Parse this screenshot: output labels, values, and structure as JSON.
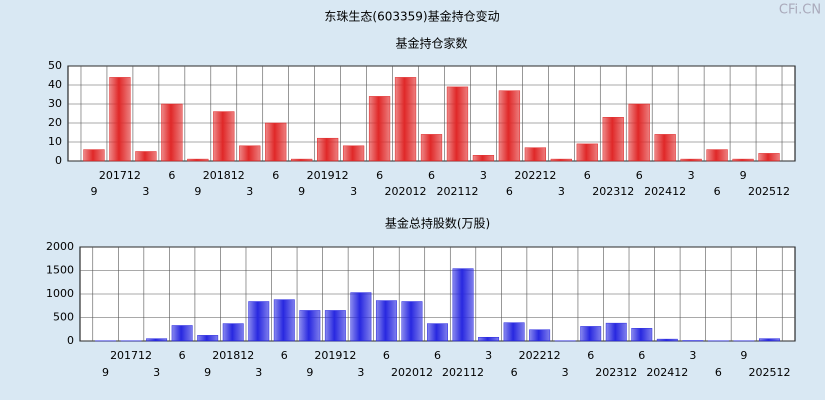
{
  "title": "东珠生态(603359)基金持仓变动",
  "watermark": "CFi.CN",
  "chart_data": [
    {
      "type": "bar",
      "title": "基金持仓家数",
      "categories": [
        "9",
        "201712",
        "3",
        "6",
        "9",
        "201812",
        "3",
        "6",
        "9",
        "201912",
        "3",
        "6",
        "202012",
        "6",
        "202112",
        "3",
        "6",
        "202212",
        "3",
        "6",
        "202312",
        "6",
        "202412",
        "3",
        "6",
        "9",
        "202512"
      ],
      "values": [
        6,
        44,
        5,
        30,
        1,
        26,
        8,
        20,
        1,
        12,
        8,
        34,
        44,
        14,
        39,
        3,
        37,
        7,
        1,
        9,
        23,
        30,
        14,
        1,
        6,
        1,
        4
      ],
      "color": "#e02828",
      "ylim": [
        0,
        50
      ],
      "yticks": [
        0,
        10,
        20,
        30,
        40,
        50
      ],
      "grid": true
    },
    {
      "type": "bar",
      "title": "基金总持股数(万股)",
      "categories": [
        "9",
        "201712",
        "3",
        "6",
        "9",
        "201812",
        "3",
        "6",
        "9",
        "201912",
        "3",
        "6",
        "202012",
        "6",
        "202112",
        "3",
        "6",
        "202212",
        "3",
        "6",
        "202312",
        "6",
        "202412",
        "3",
        "6",
        "9",
        "202512"
      ],
      "values": [
        5,
        5,
        50,
        330,
        120,
        370,
        840,
        880,
        650,
        650,
        1030,
        860,
        840,
        370,
        1540,
        80,
        390,
        240,
        5,
        310,
        380,
        270,
        40,
        10,
        5,
        5,
        50
      ],
      "color": "#2828e0",
      "ylim": [
        0,
        2000
      ],
      "yticks": [
        0,
        500,
        1000,
        1500,
        2000
      ],
      "grid": true
    }
  ]
}
